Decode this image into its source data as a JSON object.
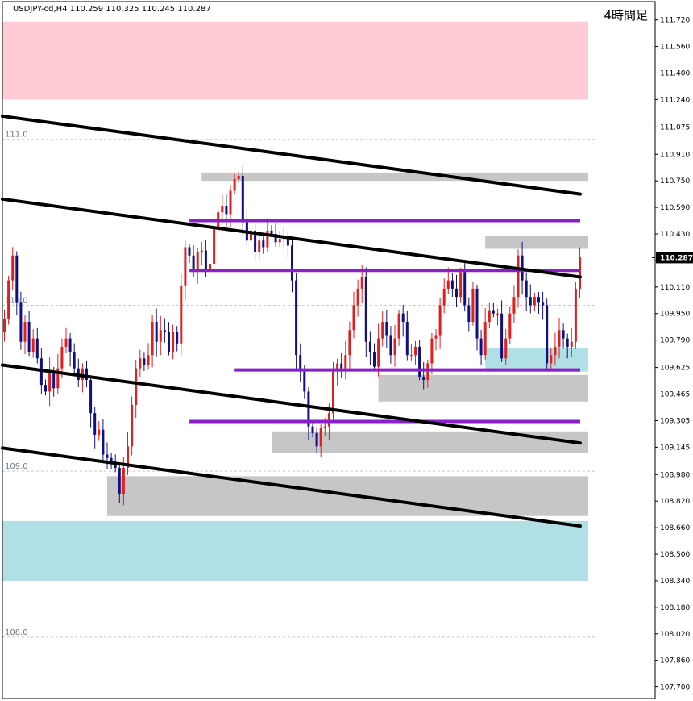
{
  "header": {
    "symbol_info": "USDJPY-cd,H4  110.259 110.325 110.245 110.287",
    "timeframe": "4時間足"
  },
  "colors": {
    "bull": "#e02020",
    "bear": "#101080",
    "trend": "#000000",
    "level": "#8a1fc9",
    "zone_pink": "#ffccd6",
    "zone_cyan": "#b0dfe6",
    "zone_gray": "#c6c6c6",
    "grid": "#c8c8c8",
    "price_tag": "#000000"
  },
  "chart_data": {
    "type": "candlestick",
    "symbol": "USDJPY-cd",
    "timeframe": "H4",
    "ylim": [
      107.63,
      111.83
    ],
    "y_ticks": [
      111.72,
      111.56,
      111.4,
      111.24,
      111.075,
      110.91,
      110.75,
      110.59,
      110.43,
      110.27,
      110.11,
      109.95,
      109.79,
      109.625,
      109.465,
      109.305,
      109.145,
      108.98,
      108.82,
      108.66,
      108.5,
      108.34,
      108.18,
      108.02,
      107.86,
      107.7
    ],
    "y_tick_labels": [
      "111.720",
      "111.560",
      "111.400",
      "111.240",
      "111.075",
      "110.910",
      "110.750",
      "110.590",
      "110.430",
      "110.270",
      "110.110",
      "109.950",
      "109.790",
      "109.625",
      "109.465",
      "109.305",
      "109.145",
      "108.980",
      "108.820",
      "108.660",
      "108.500",
      "108.340",
      "108.180",
      "108.020",
      "107.860",
      "107.700"
    ],
    "grid_levels": [
      111.0,
      110.0,
      109.0,
      108.0
    ],
    "grid_labels": [
      "111.0",
      "110.0",
      "109.0",
      "108.0"
    ],
    "current_price": 110.287,
    "current_price_label": "110.287",
    "bar_count": 141,
    "closes": [
      109.92,
      110.15,
      110.3,
      110.02,
      109.78,
      109.9,
      109.72,
      109.8,
      109.68,
      109.52,
      109.48,
      109.6,
      109.5,
      109.62,
      109.75,
      109.8,
      109.72,
      109.62,
      109.55,
      109.62,
      109.55,
      109.35,
      109.22,
      109.25,
      109.1,
      109.08,
      109.05,
      109.02,
      108.86,
      109.02,
      109.15,
      109.4,
      109.62,
      109.68,
      109.64,
      109.7,
      109.9,
      109.78,
      109.85,
      109.84,
      109.72,
      109.84,
      109.77,
      110.12,
      110.35,
      110.3,
      110.22,
      110.32,
      110.33,
      110.22,
      110.25,
      110.47,
      110.56,
      110.6,
      110.55,
      110.69,
      110.76,
      110.78,
      110.5,
      110.39,
      110.45,
      110.32,
      110.39,
      110.35,
      110.45,
      110.43,
      110.38,
      110.4,
      110.42,
      110.36,
      110.15,
      109.7,
      109.6,
      109.48,
      109.27,
      109.23,
      109.15,
      109.26,
      109.27,
      109.35,
      109.6,
      109.65,
      109.62,
      109.7,
      109.85,
      110.0,
      110.1,
      110.17,
      109.78,
      109.72,
      109.63,
      109.8,
      109.9,
      109.82,
      109.7,
      109.8,
      109.95,
      109.9,
      109.7,
      109.7,
      109.75,
      109.57,
      109.55,
      109.65,
      109.8,
      109.82,
      110.0,
      110.1,
      110.15,
      110.1,
      110.05,
      110.2,
      110.0,
      109.9,
      110.1,
      109.8,
      109.7,
      109.9,
      109.97,
      109.95,
      109.95,
      109.68,
      109.8,
      109.95,
      110.05,
      110.3,
      110.15,
      110.05,
      110.0,
      110.05,
      110.02,
      110.0,
      109.65,
      109.7,
      109.75,
      109.85,
      109.8,
      109.75,
      109.78,
      110.1,
      110.29
    ],
    "trend_lines": [
      {
        "x": [
          0,
          140
        ],
        "y": [
          111.14,
          110.67
        ]
      },
      {
        "x": [
          0,
          140
        ],
        "y": [
          110.64,
          110.17
        ]
      },
      {
        "x": [
          0,
          140
        ],
        "y": [
          109.64,
          109.17
        ]
      },
      {
        "x": [
          0,
          140
        ],
        "y": [
          109.14,
          108.67
        ]
      }
    ],
    "level_lines": [
      {
        "x": [
          46,
          140
        ],
        "y": 110.51
      },
      {
        "x": [
          46,
          140
        ],
        "y": 110.21
      },
      {
        "x": [
          57,
          140
        ],
        "y": 109.61
      },
      {
        "x": [
          46,
          140
        ],
        "y": 109.3
      }
    ],
    "zones": [
      {
        "color": "pink",
        "x": [
          0,
          141
        ],
        "y": [
          111.24,
          111.71
        ]
      },
      {
        "color": "cyan",
        "x": [
          0,
          141
        ],
        "y": [
          108.34,
          108.7
        ]
      },
      {
        "color": "gray",
        "x": [
          48,
          141
        ],
        "y": [
          110.75,
          110.8
        ]
      },
      {
        "color": "gray",
        "x": [
          117,
          141
        ],
        "y": [
          110.34,
          110.42
        ]
      },
      {
        "color": "cyan",
        "x": [
          117,
          141
        ],
        "y": [
          109.6,
          109.74
        ]
      },
      {
        "color": "gray",
        "x": [
          91,
          141
        ],
        "y": [
          109.42,
          109.58
        ]
      },
      {
        "color": "gray",
        "x": [
          65,
          141
        ],
        "y": [
          109.11,
          109.24
        ]
      },
      {
        "color": "gray",
        "x": [
          25,
          141
        ],
        "y": [
          108.73,
          108.97
        ]
      }
    ]
  }
}
